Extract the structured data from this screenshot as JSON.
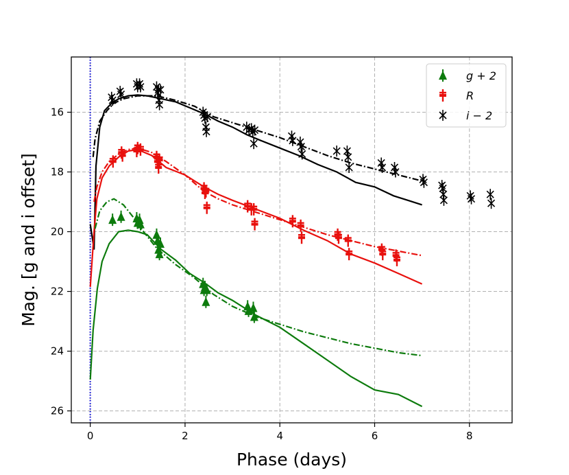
{
  "chart_data": {
    "type": "scatter",
    "xlabel": "Phase (days)",
    "ylabel": "Mag. [g and i offset]",
    "xlim": [
      -0.4,
      8.9
    ],
    "ylim": [
      26.4,
      14.15
    ],
    "y_inverted": true,
    "grid": true,
    "legend_position": "top-right",
    "x_ticks": [
      0,
      2,
      4,
      6,
      8
    ],
    "x_tick_labels": [
      "0",
      "2",
      "4",
      "6",
      "8"
    ],
    "y_ticks": [
      16,
      18,
      20,
      22,
      24,
      26
    ],
    "y_tick_labels": [
      "16",
      "18",
      "20",
      "22",
      "24",
      "26"
    ],
    "explosion_epoch": 0,
    "series": [
      {
        "name": "i − 2",
        "legend_label": "i − 2",
        "color": "#000000",
        "marker": "x-cross",
        "points": [
          [
            0.45,
            15.5
          ],
          [
            0.47,
            15.6
          ],
          [
            0.63,
            15.3
          ],
          [
            0.65,
            15.4
          ],
          [
            0.98,
            15.05
          ],
          [
            1.0,
            15.15
          ],
          [
            1.04,
            15.05
          ],
          [
            1.06,
            15.15
          ],
          [
            1.4,
            15.15
          ],
          [
            1.42,
            15.35
          ],
          [
            1.44,
            15.25
          ],
          [
            1.45,
            15.6
          ],
          [
            1.46,
            15.75
          ],
          [
            1.48,
            15.25
          ],
          [
            2.38,
            16.0
          ],
          [
            2.4,
            16.1
          ],
          [
            2.42,
            16.2
          ],
          [
            2.44,
            16.5
          ],
          [
            2.45,
            16.65
          ],
          [
            2.47,
            16.15
          ],
          [
            3.3,
            16.5
          ],
          [
            3.35,
            16.6
          ],
          [
            3.4,
            16.55
          ],
          [
            3.43,
            16.65
          ],
          [
            3.45,
            17.05
          ],
          [
            3.47,
            16.6
          ],
          [
            4.25,
            16.8
          ],
          [
            4.27,
            16.95
          ],
          [
            4.43,
            17.0
          ],
          [
            4.45,
            17.15
          ],
          [
            4.47,
            17.4
          ],
          [
            5.2,
            17.3
          ],
          [
            5.42,
            17.3
          ],
          [
            5.44,
            17.5
          ],
          [
            5.46,
            17.85
          ],
          [
            6.14,
            17.7
          ],
          [
            6.16,
            17.85
          ],
          [
            6.42,
            17.85
          ],
          [
            6.44,
            18.0
          ],
          [
            7.02,
            18.25
          ],
          [
            7.04,
            18.35
          ],
          [
            7.42,
            18.45
          ],
          [
            7.44,
            18.55
          ],
          [
            7.45,
            18.75
          ],
          [
            7.46,
            18.95
          ],
          [
            8.02,
            18.8
          ],
          [
            8.04,
            18.9
          ],
          [
            8.44,
            18.75
          ],
          [
            8.46,
            19.05
          ]
        ],
        "model_solid": [
          [
            0.0,
            19.75
          ],
          [
            0.08,
            20.6
          ],
          [
            0.12,
            17.8
          ],
          [
            0.2,
            16.5
          ],
          [
            0.3,
            15.95
          ],
          [
            0.45,
            15.7
          ],
          [
            0.6,
            15.55
          ],
          [
            0.8,
            15.45
          ],
          [
            1.0,
            15.42
          ],
          [
            1.2,
            15.45
          ],
          [
            1.5,
            15.55
          ],
          [
            1.8,
            15.65
          ],
          [
            2.1,
            15.85
          ],
          [
            2.4,
            16.05
          ],
          [
            2.7,
            16.3
          ],
          [
            3.0,
            16.5
          ],
          [
            3.3,
            16.75
          ],
          [
            3.6,
            16.95
          ],
          [
            4.0,
            17.2
          ],
          [
            4.4,
            17.45
          ],
          [
            4.8,
            17.75
          ],
          [
            5.2,
            18.0
          ],
          [
            5.6,
            18.35
          ],
          [
            6.0,
            18.5
          ],
          [
            6.4,
            18.8
          ],
          [
            6.7,
            18.95
          ],
          [
            7.0,
            19.1
          ]
        ],
        "model_dashdot": [
          [
            0.06,
            17.5
          ],
          [
            0.1,
            16.9
          ],
          [
            0.2,
            16.3
          ],
          [
            0.35,
            15.95
          ],
          [
            0.5,
            15.7
          ],
          [
            0.7,
            15.55
          ],
          [
            1.0,
            15.45
          ],
          [
            1.4,
            15.45
          ],
          [
            1.8,
            15.6
          ],
          [
            2.2,
            15.8
          ],
          [
            2.6,
            16.15
          ],
          [
            3.0,
            16.35
          ],
          [
            3.5,
            16.6
          ],
          [
            4.0,
            16.85
          ],
          [
            4.5,
            17.15
          ],
          [
            5.0,
            17.45
          ],
          [
            5.5,
            17.7
          ],
          [
            6.0,
            17.9
          ],
          [
            6.5,
            18.1
          ],
          [
            7.0,
            18.3
          ]
        ]
      },
      {
        "name": "R",
        "legend_label": "R",
        "color": "#e8100d",
        "marker": "plus-errorbar",
        "points": [
          [
            0.48,
            17.65
          ],
          [
            0.66,
            17.35
          ],
          [
            0.68,
            17.45
          ],
          [
            0.98,
            17.3
          ],
          [
            1.0,
            17.2
          ],
          [
            1.06,
            17.25
          ],
          [
            1.4,
            17.5
          ],
          [
            1.42,
            17.65
          ],
          [
            1.44,
            17.85
          ],
          [
            1.46,
            17.6
          ],
          [
            2.4,
            18.55
          ],
          [
            2.42,
            18.7
          ],
          [
            2.44,
            18.65
          ],
          [
            2.46,
            19.2
          ],
          [
            3.32,
            19.15
          ],
          [
            3.4,
            19.25
          ],
          [
            3.45,
            19.25
          ],
          [
            3.47,
            19.75
          ],
          [
            4.27,
            19.65
          ],
          [
            4.44,
            19.8
          ],
          [
            4.46,
            20.2
          ],
          [
            5.22,
            20.1
          ],
          [
            5.24,
            20.2
          ],
          [
            5.44,
            20.3
          ],
          [
            5.46,
            20.75
          ],
          [
            6.15,
            20.6
          ],
          [
            6.17,
            20.75
          ],
          [
            6.45,
            20.8
          ],
          [
            6.47,
            20.95
          ]
        ],
        "model_solid": [
          [
            0.0,
            21.85
          ],
          [
            0.08,
            20.0
          ],
          [
            0.14,
            18.9
          ],
          [
            0.25,
            18.2
          ],
          [
            0.4,
            17.8
          ],
          [
            0.6,
            17.5
          ],
          [
            0.8,
            17.3
          ],
          [
            1.0,
            17.25
          ],
          [
            1.3,
            17.45
          ],
          [
            1.6,
            17.85
          ],
          [
            2.0,
            18.1
          ],
          [
            2.4,
            18.5
          ],
          [
            2.7,
            18.75
          ],
          [
            3.0,
            18.95
          ],
          [
            3.5,
            19.25
          ],
          [
            4.0,
            19.55
          ],
          [
            4.5,
            19.95
          ],
          [
            5.0,
            20.3
          ],
          [
            5.5,
            20.75
          ],
          [
            6.0,
            21.05
          ],
          [
            6.5,
            21.4
          ],
          [
            7.0,
            21.75
          ]
        ],
        "model_dashdot": [
          [
            0.08,
            19.0
          ],
          [
            0.14,
            18.5
          ],
          [
            0.25,
            18.0
          ],
          [
            0.4,
            17.65
          ],
          [
            0.6,
            17.4
          ],
          [
            0.8,
            17.25
          ],
          [
            1.0,
            17.2
          ],
          [
            1.3,
            17.35
          ],
          [
            1.6,
            17.65
          ],
          [
            2.0,
            18.1
          ],
          [
            2.4,
            18.65
          ],
          [
            2.7,
            18.9
          ],
          [
            3.0,
            19.1
          ],
          [
            3.5,
            19.35
          ],
          [
            4.0,
            19.6
          ],
          [
            4.5,
            19.85
          ],
          [
            5.0,
            20.1
          ],
          [
            5.5,
            20.3
          ],
          [
            6.0,
            20.5
          ],
          [
            6.5,
            20.65
          ],
          [
            7.0,
            20.8
          ]
        ]
      },
      {
        "name": "g + 2",
        "legend_label": "g + 2",
        "color": "#0d7b0d",
        "marker": "triangle",
        "points": [
          [
            0.47,
            19.6
          ],
          [
            0.65,
            19.5
          ],
          [
            0.98,
            19.55
          ],
          [
            1.0,
            19.7
          ],
          [
            1.04,
            19.6
          ],
          [
            1.06,
            19.75
          ],
          [
            1.4,
            20.1
          ],
          [
            1.42,
            20.3
          ],
          [
            1.44,
            20.6
          ],
          [
            1.46,
            20.75
          ],
          [
            1.48,
            20.4
          ],
          [
            2.38,
            21.75
          ],
          [
            2.4,
            21.95
          ],
          [
            2.42,
            21.85
          ],
          [
            2.44,
            22.35
          ],
          [
            2.46,
            21.95
          ],
          [
            3.32,
            22.5
          ],
          [
            3.34,
            22.65
          ],
          [
            3.44,
            22.55
          ],
          [
            3.46,
            22.85
          ]
        ],
        "model_solid": [
          [
            0.0,
            24.95
          ],
          [
            0.06,
            23.3
          ],
          [
            0.15,
            21.9
          ],
          [
            0.25,
            21.0
          ],
          [
            0.4,
            20.4
          ],
          [
            0.6,
            20.0
          ],
          [
            0.8,
            19.95
          ],
          [
            1.0,
            20.0
          ],
          [
            1.2,
            20.1
          ],
          [
            1.5,
            20.6
          ],
          [
            1.8,
            20.95
          ],
          [
            2.1,
            21.4
          ],
          [
            2.4,
            21.7
          ],
          [
            2.7,
            22.05
          ],
          [
            3.0,
            22.3
          ],
          [
            3.5,
            22.8
          ],
          [
            4.0,
            23.2
          ],
          [
            4.5,
            23.75
          ],
          [
            5.0,
            24.3
          ],
          [
            5.5,
            24.85
          ],
          [
            6.0,
            25.3
          ],
          [
            6.5,
            25.45
          ],
          [
            7.0,
            25.85
          ]
        ],
        "model_dashdot": [
          [
            0.1,
            19.9
          ],
          [
            0.2,
            19.3
          ],
          [
            0.35,
            19.0
          ],
          [
            0.5,
            18.9
          ],
          [
            0.7,
            19.1
          ],
          [
            0.9,
            19.5
          ],
          [
            1.1,
            19.95
          ],
          [
            1.4,
            20.55
          ],
          [
            1.8,
            21.1
          ],
          [
            2.2,
            21.55
          ],
          [
            2.6,
            22.1
          ],
          [
            3.0,
            22.5
          ],
          [
            3.5,
            22.85
          ],
          [
            4.0,
            23.1
          ],
          [
            4.5,
            23.35
          ],
          [
            5.0,
            23.55
          ],
          [
            5.5,
            23.75
          ],
          [
            6.0,
            23.9
          ],
          [
            6.5,
            24.05
          ],
          [
            7.0,
            24.15
          ]
        ]
      }
    ]
  }
}
